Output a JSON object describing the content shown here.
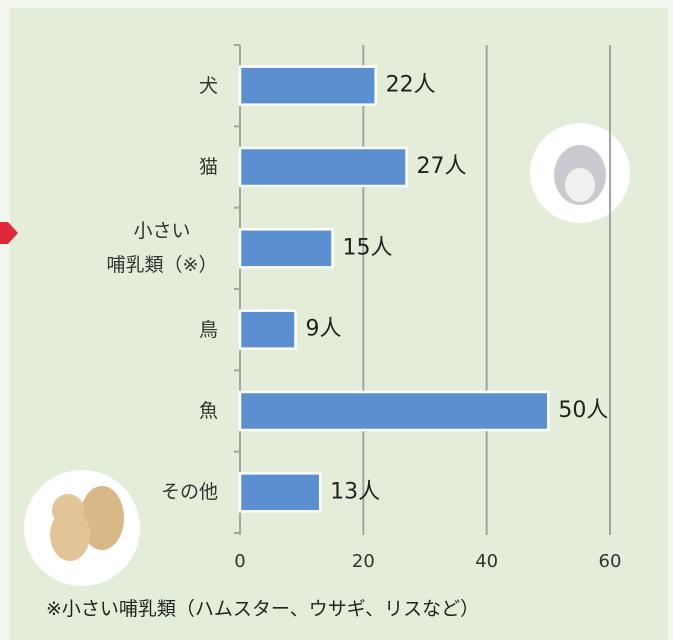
{
  "chart_data": {
    "type": "bar",
    "orientation": "horizontal",
    "categories": [
      "犬",
      "猫",
      "小さい\n哺乳類（※）",
      "鳥",
      "魚",
      "その他"
    ],
    "values": [
      22,
      27,
      15,
      9,
      50,
      13
    ],
    "value_labels": [
      "22人",
      "27人",
      "15人",
      "9人",
      "50人",
      "13人"
    ],
    "color": "#5b8fcf",
    "xlim": [
      0,
      60
    ],
    "xticks": [
      0,
      20,
      40,
      60
    ],
    "grid": true,
    "footnote": "※小さい哺乳類（ハムスター、ウサギ、リスなど）"
  }
}
